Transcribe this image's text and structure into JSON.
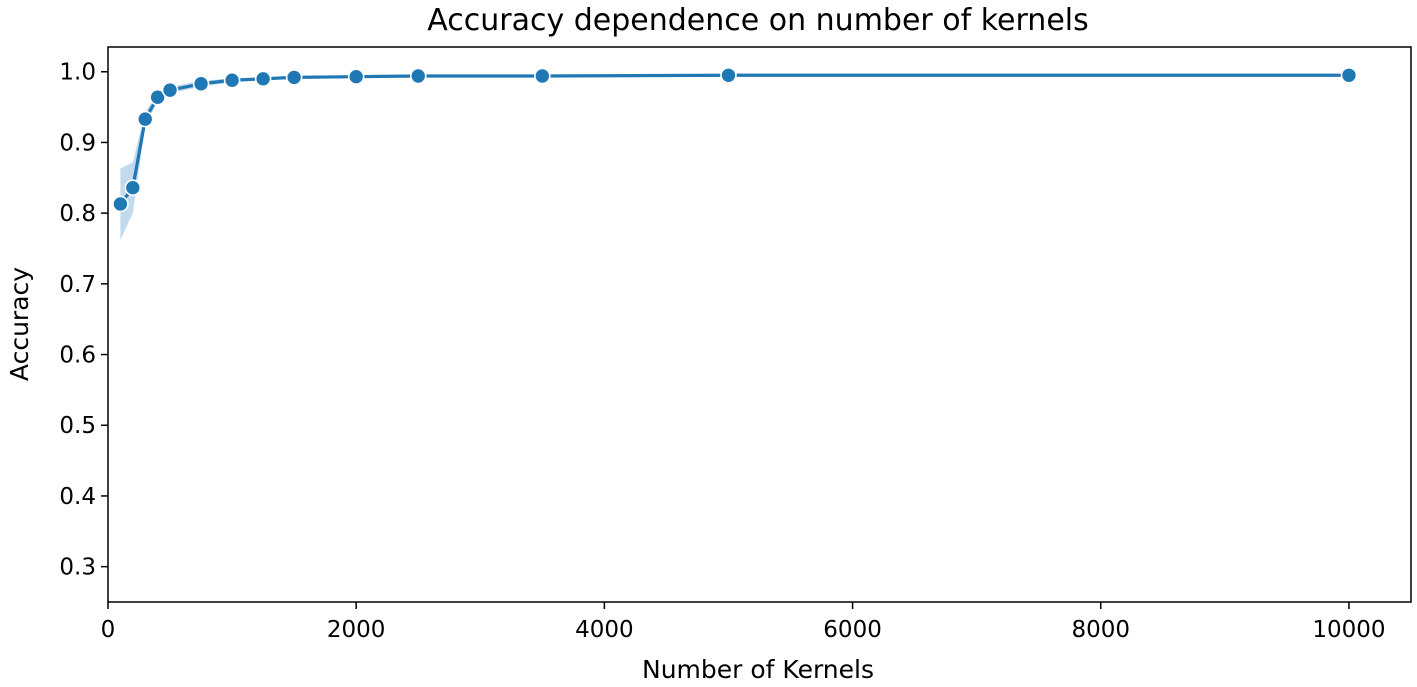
{
  "chart_data": {
    "type": "line",
    "title": "Accuracy dependence on number of kernels",
    "xlabel": "Number of Kernels",
    "ylabel": "Accuracy",
    "xlim": [
      0,
      10500
    ],
    "ylim": [
      0.25,
      1.035
    ],
    "xticks": [
      0,
      2000,
      4000,
      6000,
      8000,
      10000
    ],
    "xtick_labels": [
      "0",
      "2000",
      "4000",
      "6000",
      "8000",
      "10000"
    ],
    "yticks": [
      0.3,
      0.4,
      0.5,
      0.6,
      0.7,
      0.8,
      0.9,
      1.0
    ],
    "ytick_labels": [
      "0.3",
      "0.4",
      "0.5",
      "0.6",
      "0.7",
      "0.8",
      "0.9",
      "1.0"
    ],
    "grid": false,
    "legend": "none",
    "series": [
      {
        "color": "#1f77b4",
        "band_color": "#a6cbe5",
        "x": [
          100,
          200,
          300,
          400,
          500,
          750,
          1000,
          1250,
          1500,
          2000,
          2500,
          3500,
          5000,
          10000
        ],
        "y": [
          0.813,
          0.836,
          0.933,
          0.964,
          0.974,
          0.983,
          0.988,
          0.99,
          0.992,
          0.993,
          0.994,
          0.994,
          0.995,
          0.995
        ],
        "ci_lower": [
          0.762,
          0.8,
          0.923,
          0.958,
          0.969,
          0.979,
          0.985,
          0.988,
          0.99,
          0.992,
          0.993,
          0.993,
          0.994,
          0.994
        ],
        "ci_upper": [
          0.863,
          0.872,
          0.943,
          0.97,
          0.979,
          0.987,
          0.991,
          0.992,
          0.994,
          0.995,
          0.995,
          0.995,
          0.996,
          0.996
        ]
      }
    ]
  }
}
